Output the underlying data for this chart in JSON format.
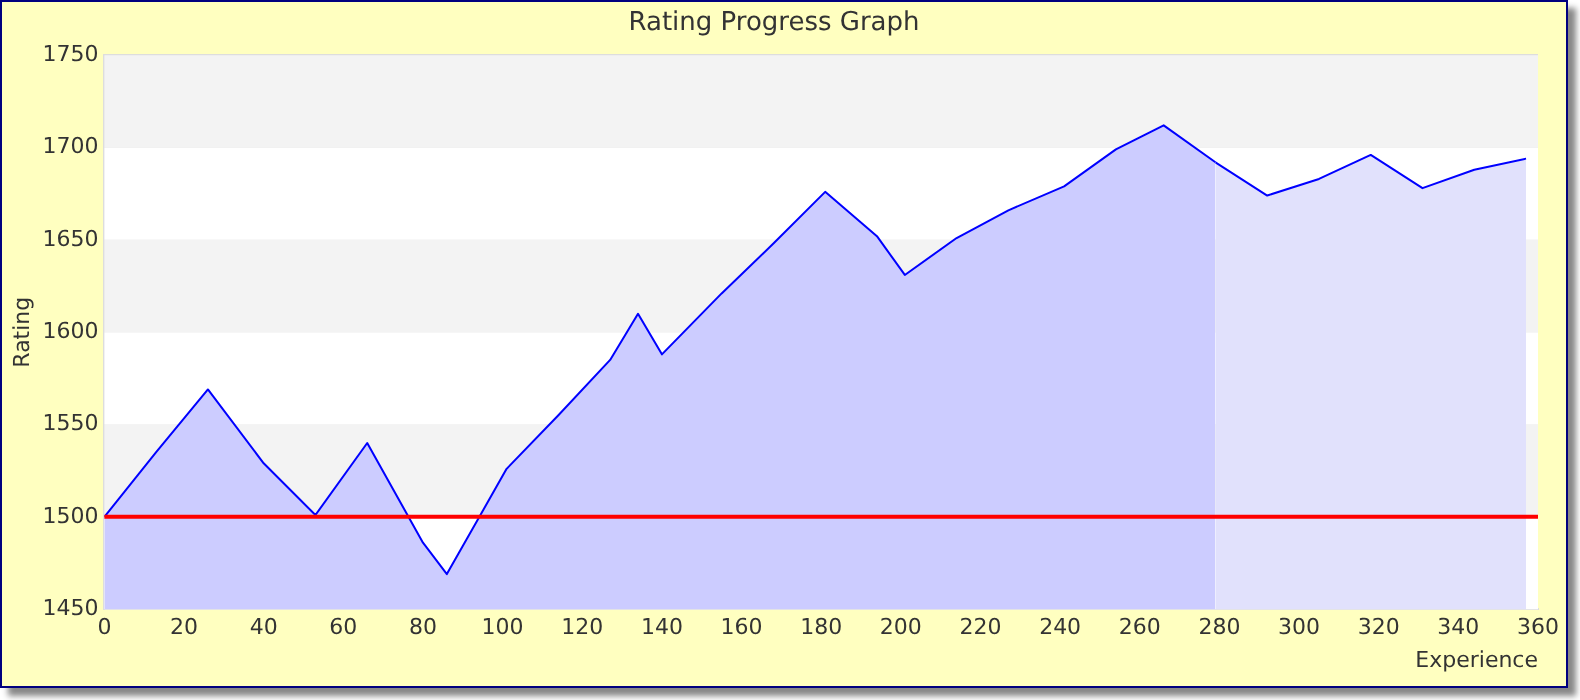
{
  "chart_data": {
    "type": "area",
    "title": "Rating Progress Graph",
    "xlabel": "Experience",
    "ylabel": "Rating",
    "series": [
      {
        "color": "#ccccff",
        "x": [
          0,
          13,
          26,
          40,
          53,
          66,
          80,
          86,
          101,
          114,
          127,
          134,
          140,
          155,
          168,
          181,
          194,
          201,
          214,
          227,
          241,
          254,
          266,
          279
        ],
        "values": [
          1500,
          1535,
          1569,
          1529,
          1501,
          1540,
          1486,
          1469,
          1526,
          1555,
          1585,
          1610,
          1588,
          1621,
          1648,
          1676,
          1652,
          1631,
          1651,
          1666,
          1679,
          1699,
          1712,
          1692
        ]
      },
      {
        "color": "#e1e1fc",
        "x": [
          279,
          292,
          305,
          318,
          331,
          344,
          357
        ],
        "values": [
          1692,
          1674,
          1683,
          1696,
          1678,
          1688,
          1694
        ]
      }
    ],
    "xlim": [
      0,
      360
    ],
    "xticks": [
      0,
      20,
      40,
      60,
      80,
      100,
      120,
      140,
      160,
      180,
      200,
      220,
      240,
      260,
      280,
      300,
      320,
      340,
      360
    ],
    "ylim": [
      1450,
      1750
    ],
    "yticks": [
      1450,
      1500,
      1550,
      1600,
      1650,
      1700,
      1750
    ],
    "ref_lines": [
      {
        "axis": "y",
        "value": 1500,
        "color": "#ff0000"
      }
    ],
    "grid": "y",
    "legend": false
  }
}
